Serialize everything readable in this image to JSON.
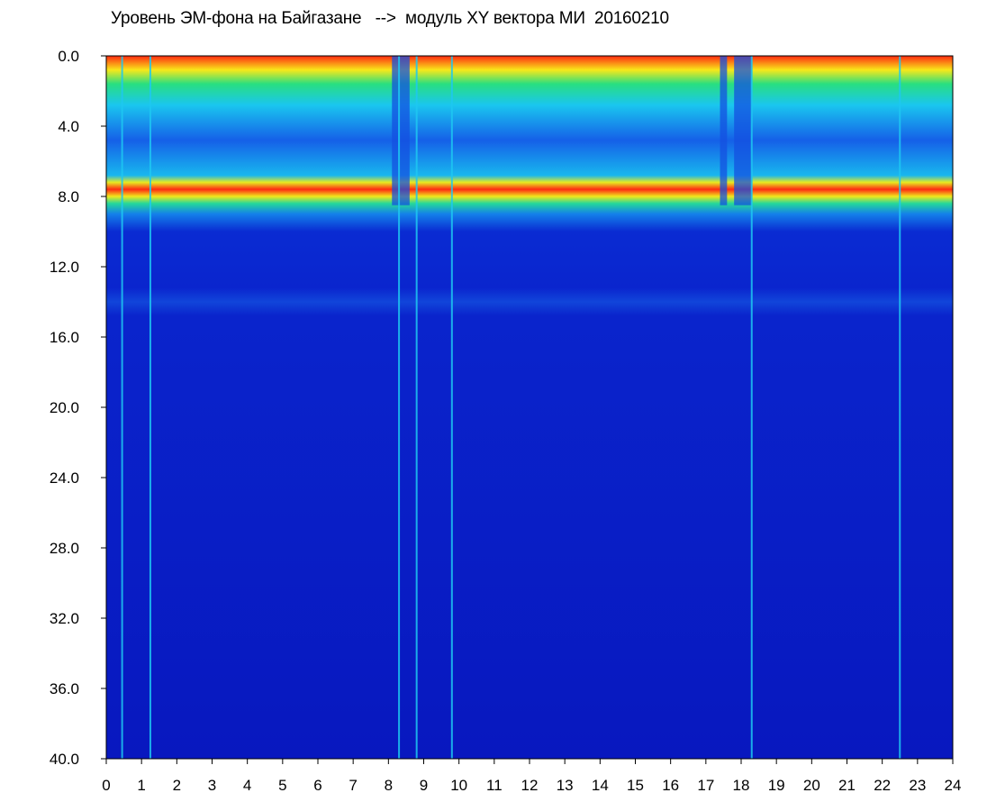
{
  "chart_data": {
    "type": "heatmap",
    "title": "Уровень ЭМ-фона на Байгазане   -->  модуль XY вектора МИ  20160210",
    "xlabel": "",
    "ylabel": "",
    "xlim": [
      0,
      24
    ],
    "ylim": [
      0.0,
      40.0
    ],
    "y_inverted": true,
    "grid": false,
    "x_ticks": [
      "0",
      "1",
      "2",
      "3",
      "4",
      "5",
      "6",
      "7",
      "8",
      "9",
      "10",
      "11",
      "12",
      "13",
      "14",
      "15",
      "16",
      "17",
      "18",
      "19",
      "20",
      "21",
      "22",
      "23",
      "24"
    ],
    "y_ticks": [
      "0.0",
      "4.0",
      "8.0",
      "12.0",
      "16.0",
      "20.0",
      "24.0",
      "28.0",
      "32.0",
      "36.0",
      "40.0"
    ],
    "colormap": [
      "#0010c8",
      "#0a55e8",
      "#19c3f0",
      "#22e07a",
      "#f7f01c",
      "#ff1e14"
    ],
    "background_color": "#0a1fd0",
    "bands": [
      {
        "y_from": 0.0,
        "y_to": 8.5,
        "level": "high"
      },
      {
        "y_from": 13.0,
        "y_to": 15.0,
        "level": "moderate"
      },
      {
        "y_from": 15.0,
        "y_to": 40.0,
        "level": "low"
      }
    ],
    "quiet_intervals": [
      {
        "x_from": 8.1,
        "x_to": 8.6
      },
      {
        "x_from": 17.4,
        "x_to": 17.6
      },
      {
        "x_from": 17.8,
        "x_to": 18.3
      }
    ],
    "vertical_lines": [
      {
        "x": 0.45
      },
      {
        "x": 1.25
      },
      {
        "x": 8.3
      },
      {
        "x": 8.8
      },
      {
        "x": 9.8
      },
      {
        "x": 18.3
      },
      {
        "x": 22.5
      }
    ]
  }
}
